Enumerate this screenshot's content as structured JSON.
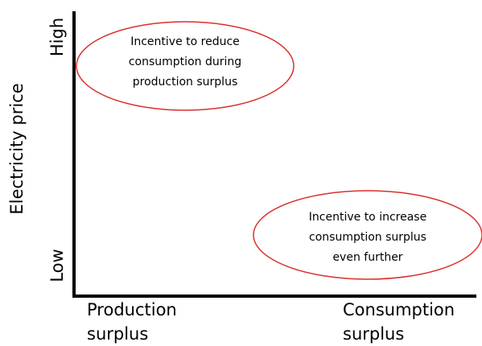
{
  "y_axis": {
    "label": "Electricity price",
    "high": "High",
    "low": "Low"
  },
  "x_axis": {
    "left": [
      "Production",
      "surplus"
    ],
    "right": [
      "Consumption",
      "surplus"
    ]
  },
  "regions": [
    {
      "lines": [
        "Incentive to reduce",
        "consumption during",
        "production surplus"
      ]
    },
    {
      "lines": [
        "Incentive to increase",
        "consumption surplus",
        "even further"
      ]
    }
  ]
}
